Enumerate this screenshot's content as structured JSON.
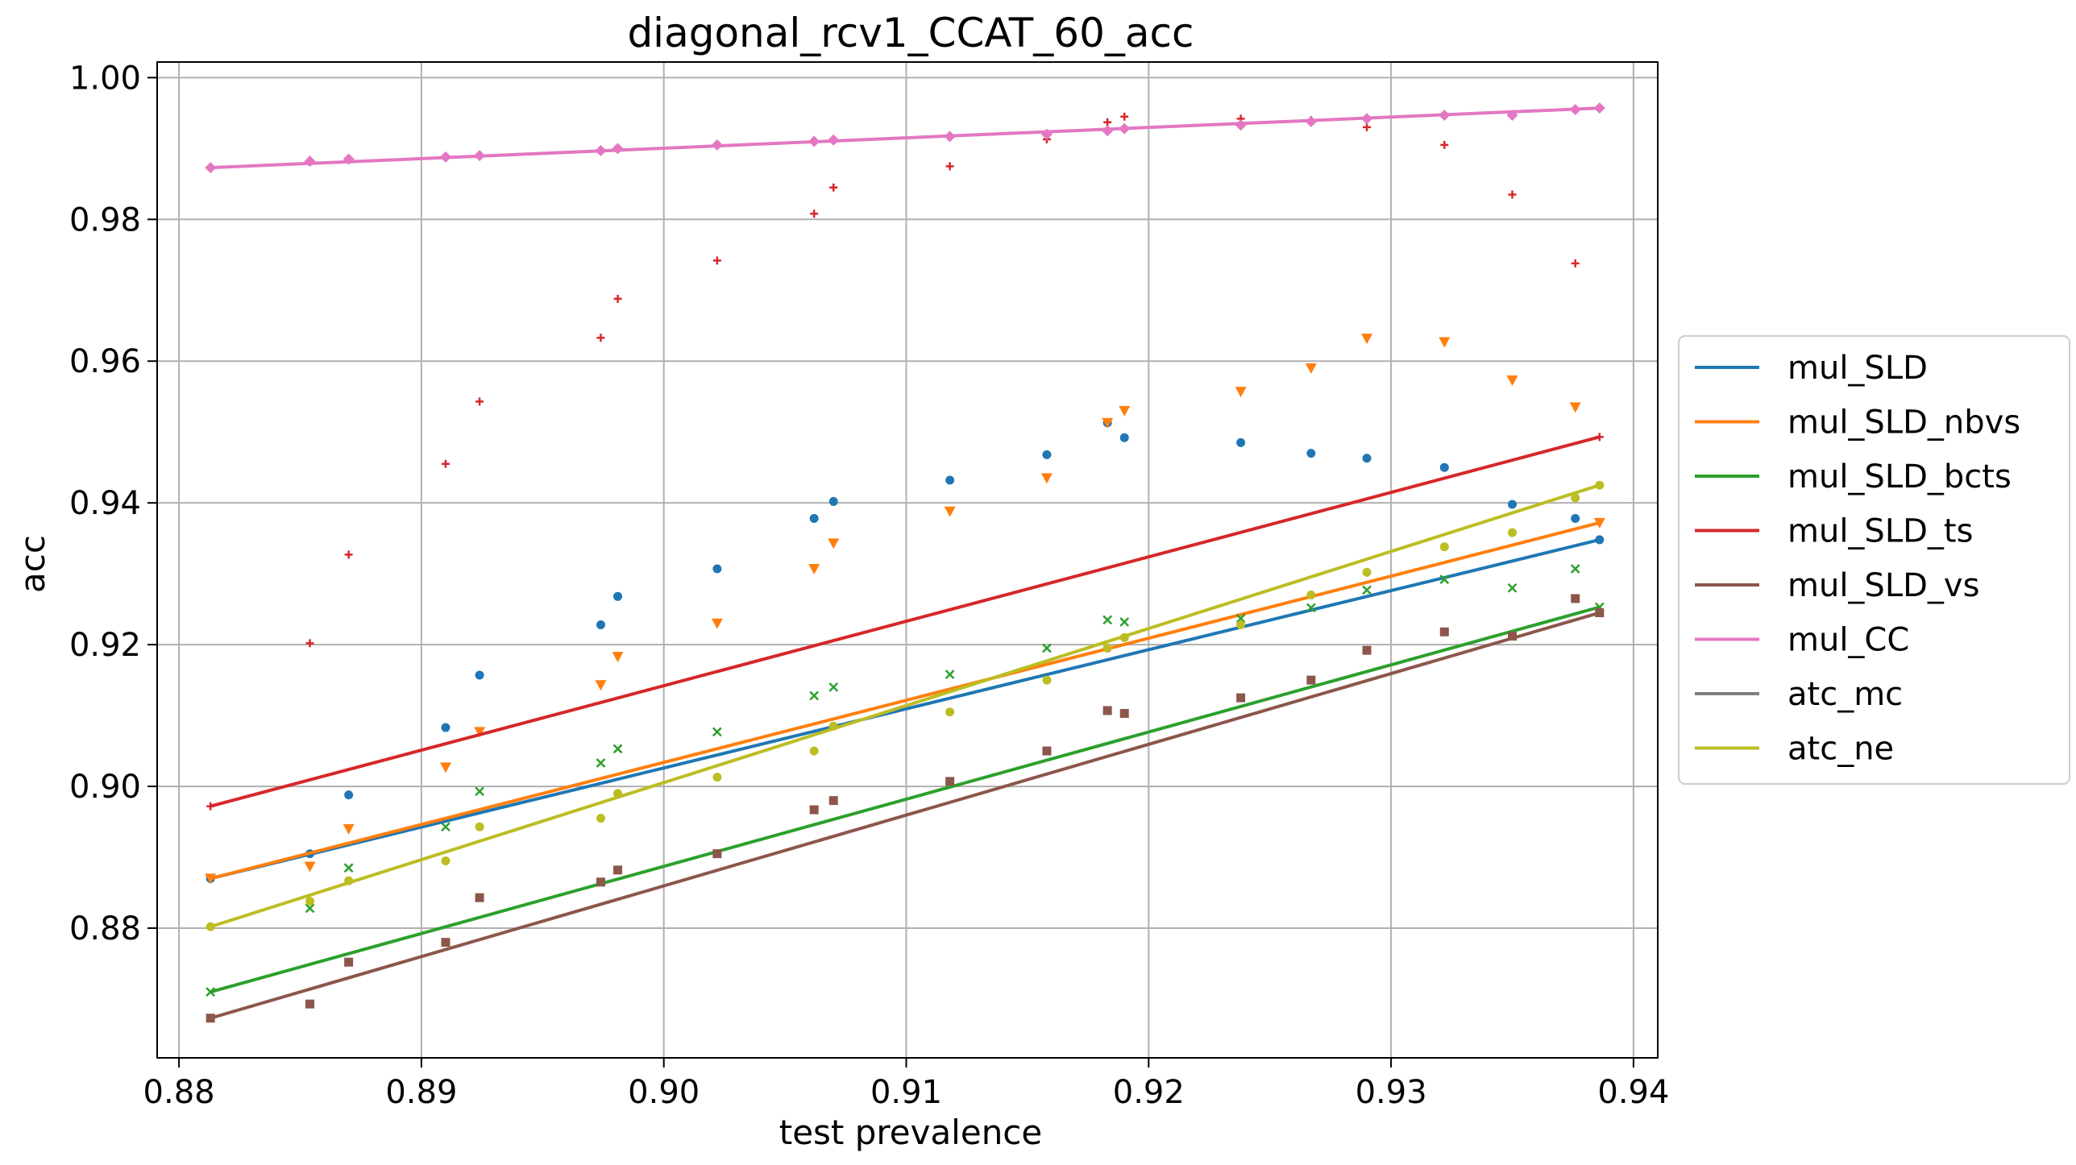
{
  "chart_data": {
    "type": "scatter",
    "title": "diagonal_rcv1_CCAT_60_acc",
    "xlabel": "test prevalence",
    "ylabel": "acc",
    "xlim": [
      0.8791,
      0.941
    ],
    "ylim": [
      0.8617,
      1.0022
    ],
    "xticks": [
      "0.88",
      "0.89",
      "0.90",
      "0.91",
      "0.92",
      "0.93",
      "0.94"
    ],
    "yticks": [
      "0.88",
      "0.90",
      "0.92",
      "0.94",
      "0.96",
      "0.98",
      "1.00"
    ],
    "grid": true,
    "legend_position": "right-outside",
    "x": [
      0.8813,
      0.8854,
      0.887,
      0.891,
      0.8924,
      0.8974,
      0.8981,
      0.9022,
      0.9062,
      0.907,
      0.9118,
      0.9158,
      0.9183,
      0.919,
      0.9238,
      0.9267,
      0.929,
      0.9322,
      0.935,
      0.9376,
      0.9386
    ],
    "series": [
      {
        "name": "mul_SLD",
        "color": "#1f77b4",
        "marker": "circle",
        "values": [
          0.887,
          0.8905,
          0.8988,
          0.9083,
          0.9157,
          0.9228,
          0.9268,
          0.9307,
          0.9378,
          0.9402,
          0.9432,
          0.9468,
          0.9513,
          0.9492,
          0.9485,
          0.947,
          0.9463,
          0.945,
          0.9398,
          0.9378,
          0.9348
        ],
        "trend": [
          0.887,
          0.9348
        ]
      },
      {
        "name": "mul_SLD_nbvs",
        "color": "#ff7f0e",
        "marker": "triangle",
        "values": [
          0.887,
          0.8887,
          0.894,
          0.9027,
          0.9077,
          0.9143,
          0.9183,
          0.923,
          0.9307,
          0.9343,
          0.9388,
          0.9435,
          0.9513,
          0.953,
          0.9557,
          0.959,
          0.9632,
          0.9627,
          0.9573,
          0.9535,
          0.9372
        ],
        "trend": [
          0.887,
          0.9372
        ]
      },
      {
        "name": "mul_SLD_bcts",
        "color": "#2ca02c",
        "marker": "x",
        "values": [
          0.871,
          0.8828,
          0.8885,
          0.8943,
          0.8993,
          0.9033,
          0.9053,
          0.9077,
          0.9128,
          0.914,
          0.9158,
          0.9195,
          0.9235,
          0.9232,
          0.9237,
          0.9252,
          0.9277,
          0.9292,
          0.928,
          0.9307,
          0.9253
        ],
        "trend": [
          0.871,
          0.9253
        ]
      },
      {
        "name": "mul_SLD_ts",
        "color": "#d62728",
        "marker": "plus",
        "values": [
          0.8972,
          0.9202,
          0.9327,
          0.9455,
          0.9543,
          0.9633,
          0.9688,
          0.9742,
          0.9808,
          0.9845,
          0.9875,
          0.9913,
          0.9937,
          0.9945,
          0.9942,
          0.994,
          0.993,
          0.9905,
          0.9835,
          0.9738,
          0.9493
        ],
        "trend": [
          0.8972,
          0.9493
        ]
      },
      {
        "name": "mul_SLD_vs",
        "color": "#8c564b",
        "marker": "square",
        "values": [
          0.8673,
          0.8693,
          0.8752,
          0.878,
          0.8843,
          0.8865,
          0.8882,
          0.8905,
          0.8967,
          0.898,
          0.9007,
          0.905,
          0.9107,
          0.9103,
          0.9125,
          0.915,
          0.9192,
          0.9218,
          0.9212,
          0.9265,
          0.9245
        ],
        "trend": [
          0.8673,
          0.9245
        ]
      },
      {
        "name": "mul_CC",
        "color": "#e377c2",
        "marker": "diamond",
        "values": [
          0.9873,
          0.9882,
          0.9885,
          0.9888,
          0.989,
          0.9897,
          0.99,
          0.9905,
          0.991,
          0.9912,
          0.9917,
          0.992,
          0.9925,
          0.9928,
          0.9933,
          0.9938,
          0.9942,
          0.9947,
          0.9947,
          0.9955,
          0.9957
        ],
        "trend": [
          0.9873,
          0.9957
        ]
      },
      {
        "name": "atc_mc",
        "color": "#7f7f7f",
        "marker": "none",
        "values": [],
        "trend": null
      },
      {
        "name": "atc_ne",
        "color": "#bcbd22",
        "marker": "circle",
        "values": [
          0.8802,
          0.8838,
          0.8867,
          0.8895,
          0.8943,
          0.8955,
          0.899,
          0.9013,
          0.905,
          0.9085,
          0.9105,
          0.915,
          0.9195,
          0.921,
          0.9228,
          0.927,
          0.9302,
          0.9338,
          0.9358,
          0.9407,
          0.9425
        ],
        "trend": [
          0.8802,
          0.9425
        ]
      }
    ]
  }
}
